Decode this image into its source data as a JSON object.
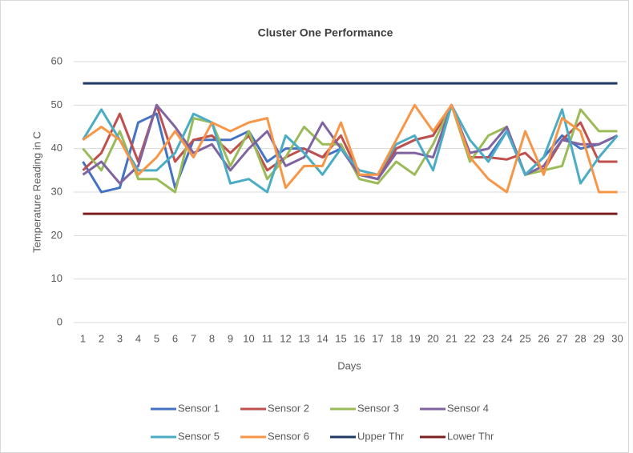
{
  "chart_data": {
    "type": "line",
    "title": "Cluster One Performance",
    "x_label": "Days",
    "y_label": "Temperature Reading in C",
    "categories": [
      "1",
      "2",
      "3",
      "4",
      "5",
      "6",
      "7",
      "8",
      "9",
      "10",
      "11",
      "12",
      "13",
      "14",
      "15",
      "16",
      "17",
      "18",
      "19",
      "20",
      "21",
      "22",
      "23",
      "24",
      "25",
      "26",
      "27",
      "28",
      "29",
      "30"
    ],
    "ylim": [
      0,
      60
    ],
    "yticks": [
      0,
      10,
      20,
      30,
      40,
      50,
      60
    ],
    "grid": true,
    "legend": "bottom",
    "series": [
      {
        "name": "Sensor 1",
        "color": "#4472c4",
        "values": [
          37,
          30,
          31,
          46,
          48,
          31,
          42,
          42,
          42,
          44,
          37,
          40,
          40,
          38,
          40,
          34,
          33,
          40,
          42,
          43,
          50,
          38,
          38,
          44,
          34,
          38,
          43,
          40,
          41,
          43
        ]
      },
      {
        "name": "Sensor 2",
        "color": "#c0504d",
        "values": [
          35,
          39,
          48,
          37,
          50,
          37,
          42,
          43,
          39,
          43,
          35,
          38,
          40,
          38,
          43,
          34,
          33,
          40,
          42,
          43,
          50,
          38,
          38,
          37.5,
          39,
          35,
          42,
          46,
          37,
          37
        ]
      },
      {
        "name": "Sensor 3",
        "color": "#9bbb59",
        "values": [
          40,
          35,
          44,
          33,
          33,
          30,
          47,
          46,
          36,
          44,
          33,
          38,
          45,
          41,
          41,
          33,
          32,
          37,
          34,
          41,
          50,
          37,
          43,
          45,
          34,
          35,
          36,
          49,
          44,
          44
        ]
      },
      {
        "name": "Sensor 4",
        "color": "#8064a2",
        "values": [
          34,
          37,
          32,
          36,
          50,
          45,
          39,
          41,
          35,
          40,
          44,
          36,
          38,
          46,
          40,
          34,
          33,
          39,
          39,
          38,
          50,
          39,
          40,
          45,
          34,
          36,
          42,
          41,
          41,
          43
        ]
      },
      {
        "name": "Sensor 5",
        "color": "#4bacc6",
        "values": [
          42,
          49,
          42,
          35,
          35,
          39,
          48,
          46,
          32,
          33,
          30,
          43,
          39,
          34,
          40,
          35,
          34,
          41,
          43,
          35,
          50,
          42,
          37,
          44,
          34,
          38,
          49,
          32,
          38,
          43
        ]
      },
      {
        "name": "Sensor 6",
        "color": "#f79646",
        "values": [
          42,
          45,
          42,
          34,
          38,
          44,
          38,
          46,
          44,
          46,
          47,
          31,
          36,
          36,
          46,
          34,
          34,
          42,
          50,
          44,
          50,
          38,
          33,
          30,
          44,
          34,
          47,
          44,
          30,
          30
        ]
      },
      {
        "name": "Upper Thr",
        "color": "#1f3864",
        "values": [
          55,
          55,
          55,
          55,
          55,
          55,
          55,
          55,
          55,
          55,
          55,
          55,
          55,
          55,
          55,
          55,
          55,
          55,
          55,
          55,
          55,
          55,
          55,
          55,
          55,
          55,
          55,
          55,
          55,
          55
        ]
      },
      {
        "name": "Lower Thr",
        "color": "#7b2020",
        "values": [
          25,
          25,
          25,
          25,
          25,
          25,
          25,
          25,
          25,
          25,
          25,
          25,
          25,
          25,
          25,
          25,
          25,
          25,
          25,
          25,
          25,
          25,
          25,
          25,
          25,
          25,
          25,
          25,
          25,
          25
        ]
      }
    ]
  }
}
